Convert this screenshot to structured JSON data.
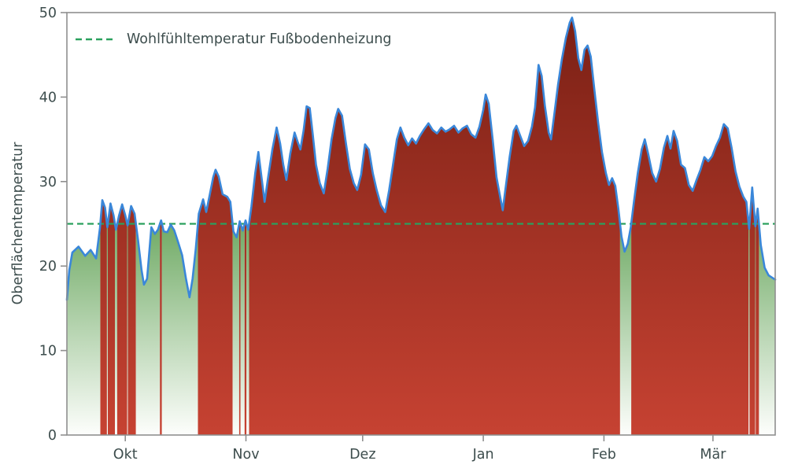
{
  "chart_data": {
    "type": "area",
    "title": "",
    "xlabel": "",
    "ylabel": "Oberflächentemperatur",
    "ylim": [
      0,
      50
    ],
    "xlim": [
      0,
      182
    ],
    "yticks": [
      0,
      10,
      20,
      30,
      40,
      50
    ],
    "xticks": {
      "positions": [
        15,
        46,
        76,
        107,
        138,
        166
      ],
      "labels": [
        "Okt",
        "Nov",
        "Dez",
        "Jan",
        "Feb",
        "Mär"
      ]
    },
    "grid": false,
    "legend": {
      "position": "upper left",
      "frame": false
    },
    "threshold": {
      "value": 25,
      "label": "Wohlfühltemperatur Fußbodenheizung",
      "color": "#2ba15e",
      "style": "dashed"
    },
    "fill_rule": "area filled red where value >= threshold, green fading to white where below",
    "colors": {
      "line": "#3a87d9",
      "above_top": "#7a2015",
      "above_bottom": "#c64232",
      "below_top": "#6aa75f",
      "below_bottom": "#fdfefc",
      "text": "#3d4d4d",
      "spine": "#8f8f8f"
    },
    "series": [
      {
        "name": "Oberflächentemperatur",
        "x": [
          0,
          0.6,
          1.4,
          3,
          4.7,
          6.1,
          7.5,
          8.5,
          9.1,
          9.8,
          10.4,
          11.2,
          12,
          12.6,
          13.4,
          14.2,
          15,
          15.6,
          16.5,
          17.4,
          18.3,
          19.2,
          19.8,
          20.6,
          21.7,
          22.6,
          23.4,
          24.2,
          24.9,
          25.8,
          26.7,
          27.6,
          28.6,
          29.6,
          30.6,
          31.5,
          32.3,
          33.1,
          33.9,
          35,
          35.8,
          36.6,
          37.6,
          38.2,
          39,
          40,
          41.2,
          42,
          42.8,
          43.6,
          44.4,
          45.2,
          45.9,
          46.6,
          47.4,
          48.4,
          49.2,
          50,
          50.8,
          51.7,
          52.8,
          53.9,
          54.8,
          55.6,
          56.4,
          57.4,
          58.5,
          59.3,
          60,
          60.8,
          61.6,
          62.4,
          63.2,
          64,
          65,
          66,
          67,
          68,
          69,
          69.7,
          70.7,
          71.7,
          72.7,
          73.7,
          74.6,
          75.6,
          76.6,
          77.6,
          78.6,
          79.6,
          80.7,
          81.8,
          82.8,
          83.8,
          84.8,
          85.7,
          86.7,
          87.7,
          88.7,
          89.7,
          90.7,
          91.8,
          92.9,
          94,
          95.1,
          96.2,
          97.3,
          98.4,
          99.5,
          100.6,
          101.7,
          102.8,
          103.9,
          105,
          106,
          107,
          107.6,
          108.4,
          109.4,
          110.4,
          111.4,
          112,
          112.8,
          113.8,
          114.8,
          115.5,
          116.5,
          117.5,
          118.5,
          119.5,
          120.3,
          121.2,
          122,
          122.8,
          123.8,
          124.4,
          125.2,
          126.2,
          127.2,
          128.2,
          129.2,
          129.8,
          130.6,
          131.4,
          132.2,
          133,
          133.8,
          134.6,
          135.5,
          136.5,
          137.5,
          138.5,
          139.3,
          140.1,
          140.9,
          141.7,
          142.5,
          143.3,
          144.1,
          144.9,
          145.7,
          146.7,
          147.7,
          148.5,
          149.4,
          150.4,
          151.4,
          152.4,
          153.4,
          154.3,
          155.1,
          155.9,
          156.8,
          157.8,
          158.8,
          159.8,
          160.8,
          161.8,
          162.8,
          163.8,
          164.8,
          165.8,
          166.8,
          167.8,
          168.8,
          169.8,
          170.8,
          171.8,
          172.8,
          173.8,
          174.6,
          175.3,
          176.1,
          176.9,
          177.5,
          178.3,
          179.3,
          180.3,
          181.3,
          182
        ],
        "y": [
          16,
          19.5,
          21.6,
          22.3,
          21.2,
          21.9,
          20.9,
          24.5,
          27.8,
          26.9,
          24.6,
          27.4,
          26,
          24.3,
          26,
          27.3,
          26,
          24.8,
          27.1,
          26.2,
          23,
          19.5,
          17.8,
          18.5,
          24.6,
          23.8,
          24.3,
          25.4,
          24.1,
          24,
          24.9,
          24.2,
          22.8,
          21.3,
          18.5,
          16.3,
          18.5,
          22,
          26.2,
          27.9,
          26.4,
          28.2,
          30.5,
          31.4,
          30.6,
          28.5,
          28.2,
          27.6,
          24.1,
          23.4,
          25.3,
          24.2,
          25.4,
          24.3,
          27,
          31,
          33.5,
          30.5,
          27.6,
          30.5,
          33.8,
          36.4,
          34.5,
          32,
          30.2,
          33.3,
          35.8,
          34.7,
          33.8,
          36,
          38.9,
          38.7,
          35.5,
          32,
          29.8,
          28.6,
          31.5,
          35,
          37.5,
          38.6,
          37.8,
          34.5,
          31.5,
          29.8,
          29,
          30.8,
          34.4,
          33.8,
          31,
          29,
          27.2,
          26.4,
          29,
          32,
          35,
          36.4,
          35.2,
          34.3,
          35.1,
          34.5,
          35.4,
          36.2,
          36.9,
          36.1,
          35.7,
          36.4,
          35.9,
          36.2,
          36.6,
          35.8,
          36.3,
          36.6,
          35.6,
          35.2,
          36.5,
          38.5,
          40.3,
          39.2,
          35,
          30.5,
          28,
          26.6,
          29.5,
          33,
          36,
          36.6,
          35.4,
          34.2,
          34.8,
          36.5,
          38.8,
          43.8,
          42.5,
          39,
          35.8,
          35,
          37.8,
          41.5,
          44.5,
          47,
          48.8,
          49.4,
          47.8,
          44.6,
          43.2,
          45.6,
          46.1,
          44.8,
          41,
          37,
          33.5,
          31,
          29.6,
          30.4,
          29.5,
          26.8,
          23.5,
          21.7,
          22.6,
          24.6,
          27.6,
          31,
          33.8,
          35,
          33.2,
          31,
          30,
          31.5,
          34,
          35.4,
          33.9,
          36,
          34.8,
          32,
          31.6,
          29.6,
          28.9,
          30.2,
          31.4,
          32.9,
          32.4,
          33,
          34.2,
          35.2,
          36.8,
          36.3,
          34,
          31.2,
          29.4,
          28.2,
          27.6,
          24.4,
          29.3,
          24.7,
          26.8,
          22.5,
          19.8,
          18.9,
          18.6,
          18.4
        ]
      }
    ]
  }
}
